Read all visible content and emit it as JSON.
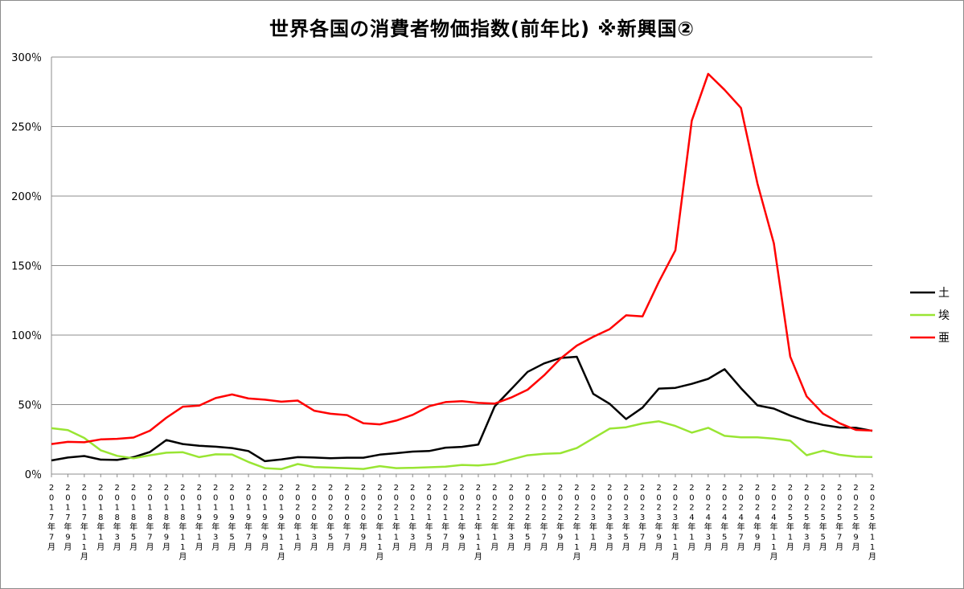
{
  "chart_data": {
    "type": "line",
    "title": "世界各国の消費者物価指数(前年比) ※新興国②",
    "ylim": [
      0,
      300
    ],
    "yticks": [
      0,
      50,
      100,
      150,
      200,
      250,
      300
    ],
    "y_unit": "％",
    "grid": true,
    "legend_placement": "right",
    "x": [
      "2017年7月",
      "2017年9月",
      "2017年11月",
      "2018年1月",
      "2018年3月",
      "2018年5月",
      "2018年7月",
      "2018年9月",
      "2018年11月",
      "2019年1月",
      "2019年3月",
      "2019年5月",
      "2019年7月",
      "2019年9月",
      "2019年11月",
      "2020年1月",
      "2020年3月",
      "2020年5月",
      "2020年7月",
      "2020年9月",
      "2020年11月",
      "2021年1月",
      "2021年3月",
      "2021年5月",
      "2021年7月",
      "2021年9月",
      "2021年11月",
      "2022年1月",
      "2022年3月",
      "2022年5月",
      "2022年7月",
      "2022年9月",
      "2022年11月",
      "2023年1月",
      "2023年3月",
      "2023年5月",
      "2023年7月",
      "2023年9月",
      "2023年11月",
      "2024年1月",
      "2024年3月",
      "2024年5月",
      "2024年7月",
      "2024年9月",
      "2024年11月",
      "2025年1月",
      "2025年3月",
      "2025年5月",
      "2025年7月",
      "2025年9月",
      "2025年11月"
    ],
    "series": [
      {
        "name": "土",
        "color": "#000000",
        "values": [
          9.8,
          11.9,
          13.0,
          10.4,
          10.2,
          12.2,
          15.9,
          24.5,
          21.6,
          20.4,
          19.7,
          18.7,
          16.6,
          9.3,
          10.6,
          12.2,
          11.9,
          11.4,
          11.8,
          11.8,
          14.0,
          15.0,
          16.2,
          16.6,
          19.0,
          19.6,
          21.3,
          48.7,
          61.1,
          73.5,
          79.6,
          83.5,
          84.4,
          57.7,
          50.5,
          39.6,
          47.8,
          61.5,
          62.0,
          64.9,
          68.5,
          75.5,
          61.8,
          49.4,
          47.1,
          42.1,
          38.1,
          35.4,
          33.5,
          33.3,
          31.1
        ]
      },
      {
        "name": "埃",
        "color": "#99e533",
        "values": [
          33.0,
          31.6,
          26.0,
          17.1,
          13.1,
          11.4,
          13.5,
          15.4,
          15.7,
          12.2,
          14.2,
          14.1,
          8.7,
          4.3,
          3.6,
          7.2,
          5.1,
          4.7,
          4.2,
          3.7,
          5.7,
          4.3,
          4.5,
          4.9,
          5.4,
          6.6,
          6.2,
          7.3,
          10.5,
          13.5,
          14.6,
          15.0,
          18.7,
          25.8,
          32.7,
          33.7,
          36.4,
          38.0,
          34.6,
          29.8,
          33.3,
          27.5,
          26.4,
          26.5,
          25.5,
          24.0,
          13.6,
          16.8,
          13.9,
          12.5,
          12.3
        ]
      },
      {
        "name": "亜",
        "color": "#ff0000",
        "values": [
          21.6,
          23.2,
          22.9,
          25.0,
          25.4,
          26.3,
          31.2,
          40.5,
          48.5,
          49.3,
          54.7,
          57.3,
          54.4,
          53.5,
          52.1,
          52.9,
          45.6,
          43.4,
          42.4,
          36.6,
          35.8,
          38.5,
          42.6,
          48.8,
          51.8,
          52.5,
          51.2,
          50.7,
          55.1,
          60.7,
          71.0,
          83.0,
          92.4,
          98.8,
          104.3,
          114.2,
          113.4,
          138.3,
          160.9,
          254.2,
          287.9,
          276.4,
          263.4,
          209.0,
          166.0,
          84.5,
          55.9,
          43.5,
          36.6,
          31.8,
          31.3
        ]
      }
    ]
  }
}
